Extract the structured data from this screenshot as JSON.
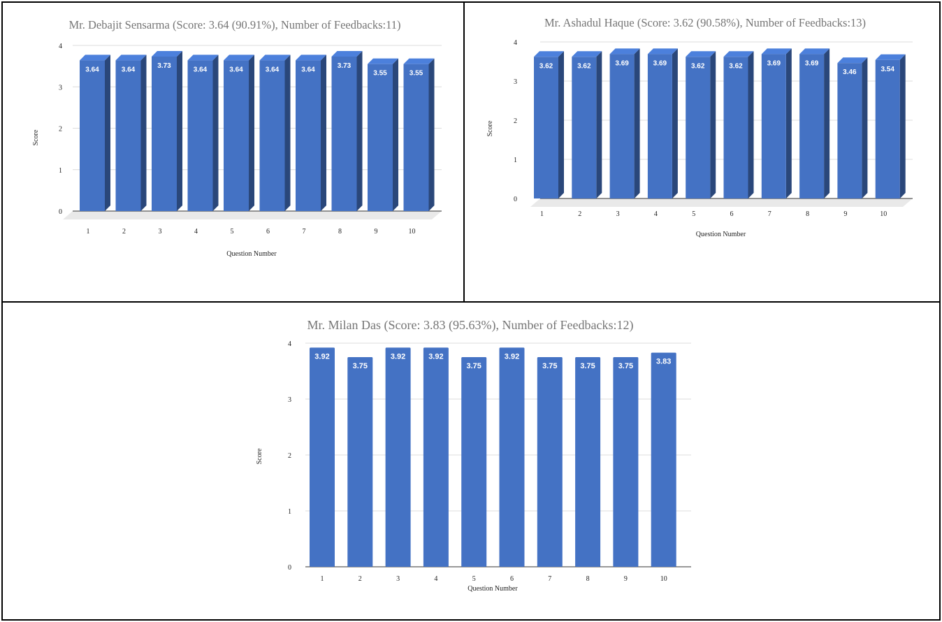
{
  "chart_data": [
    {
      "type": "bar",
      "title": "Mr. Debajit Sensarma (Score: 3.64 (90.91%), Number of Feedbacks:11)",
      "xlabel": "Question Number",
      "ylabel": "Score",
      "categories": [
        "1",
        "2",
        "3",
        "4",
        "5",
        "6",
        "7",
        "8",
        "9",
        "10"
      ],
      "values": [
        3.64,
        3.64,
        3.73,
        3.64,
        3.64,
        3.64,
        3.64,
        3.73,
        3.55,
        3.55
      ],
      "ylim": [
        0,
        4
      ],
      "yticks": [
        "0",
        "1",
        "2",
        "3",
        "4"
      ],
      "grid": true,
      "style": "3d",
      "color": "#4472c4"
    },
    {
      "type": "bar",
      "title": "Mr. Ashadul Haque (Score: 3.62 (90.58%), Number of Feedbacks:13)",
      "xlabel": "Question Number",
      "ylabel": "Score",
      "categories": [
        "1",
        "2",
        "3",
        "4",
        "5",
        "6",
        "7",
        "8",
        "9",
        "10"
      ],
      "values": [
        3.62,
        3.62,
        3.69,
        3.69,
        3.62,
        3.62,
        3.69,
        3.69,
        3.46,
        3.54
      ],
      "ylim": [
        0,
        4
      ],
      "yticks": [
        "0",
        "1",
        "2",
        "3",
        "4"
      ],
      "grid": true,
      "style": "3d",
      "color": "#4472c4"
    },
    {
      "type": "bar",
      "title": "Mr. Milan Das (Score: 3.83 (95.63%), Number of Feedbacks:12)",
      "xlabel": "Question Number",
      "ylabel": "Score",
      "categories": [
        "1",
        "2",
        "3",
        "4",
        "5",
        "6",
        "7",
        "8",
        "9",
        "10"
      ],
      "values": [
        3.92,
        3.75,
        3.92,
        3.92,
        3.75,
        3.92,
        3.75,
        3.75,
        3.75,
        3.83
      ],
      "ylim": [
        0,
        4
      ],
      "yticks": [
        "0",
        "1",
        "2",
        "3",
        "4"
      ],
      "grid": true,
      "style": "flat",
      "color": "#4472c4"
    }
  ]
}
